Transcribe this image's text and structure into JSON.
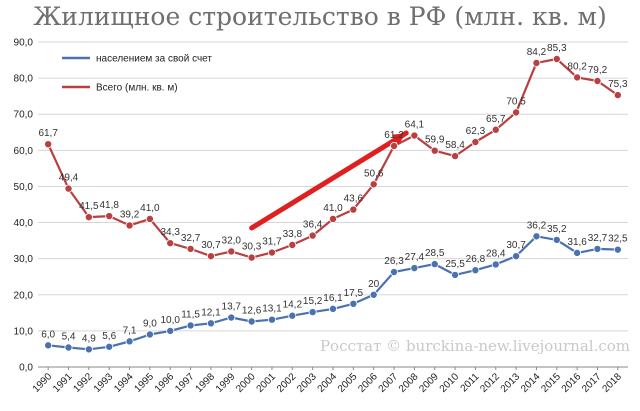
{
  "chart_data": {
    "type": "line",
    "title": "Жилищное строительство в РФ (млн. кв. м)",
    "xlabel": "",
    "ylabel": "",
    "ylim": [
      0,
      90
    ],
    "y_ticks": [
      "0,0",
      "10,0",
      "20,0",
      "30,0",
      "40,0",
      "50,0",
      "60,0",
      "70,0",
      "80,0",
      "90,0"
    ],
    "grid": "horizontal",
    "legend_position": "top-left",
    "x": [
      1990,
      1991,
      1992,
      1993,
      1994,
      1995,
      1996,
      1997,
      1998,
      1999,
      2000,
      2001,
      2002,
      2003,
      2004,
      2005,
      2006,
      2007,
      2008,
      2009,
      2010,
      2011,
      2012,
      2013,
      2014,
      2015,
      2016,
      2017,
      2018
    ],
    "series": [
      {
        "name": "населением за свой счет",
        "color": "#4a72b0",
        "values": [
          6.0,
          5.4,
          4.9,
          5.6,
          7.1,
          9.0,
          10.0,
          11.5,
          12.1,
          13.7,
          12.6,
          13.1,
          14.2,
          15.2,
          16.1,
          17.5,
          20,
          26.3,
          27.4,
          28.5,
          25.5,
          26.8,
          28.4,
          30.7,
          36.2,
          35.2,
          31.6,
          32.7,
          32.5
        ],
        "labels": [
          "6,0",
          "5,4",
          "4,9",
          "5,6",
          "7,1",
          "9,0",
          "10,0",
          "11,5",
          "12,1",
          "13,7",
          "12,6",
          "13,1",
          "14,2",
          "15,2",
          "16,1",
          "17,5",
          "20",
          "26,3",
          "27,4",
          "28,5",
          "25,5",
          "26,8",
          "28,4",
          "30,7",
          "36,2",
          "35,2",
          "31,6",
          "32,7",
          "32,5"
        ]
      },
      {
        "name": "Всего (млн. кв. м)",
        "color": "#b84040",
        "values": [
          61.7,
          49.4,
          41.5,
          41.8,
          39.2,
          41.0,
          34.3,
          32.7,
          30.7,
          32.0,
          30.3,
          31.7,
          33.8,
          36.4,
          41.0,
          43.6,
          50.6,
          61.2,
          64.1,
          59.9,
          58.4,
          62.3,
          65.7,
          70.5,
          84.2,
          85.3,
          80.2,
          79.2,
          75.3
        ],
        "labels": [
          "61,7",
          "49,4",
          "41,5",
          "41,8",
          "39,2",
          "41,0",
          "34,3",
          "32,7",
          "30,7",
          "32,0",
          "30,3",
          "31,7",
          "33,8",
          "36,4",
          "41,0",
          "43,6",
          "50,6",
          "61,2",
          "64,1",
          "59,9",
          "58,4",
          "62,3",
          "65,7",
          "70,5",
          "84,2",
          "85,3",
          "80,2",
          "79,2",
          "75,3"
        ]
      }
    ],
    "annotation_arrow": {
      "color": "#e02020",
      "from": [
        2000,
        38.5
      ],
      "to": [
        2007.6,
        64.8
      ]
    },
    "watermark": "Росстат © burckina-new.livejournal.com"
  }
}
